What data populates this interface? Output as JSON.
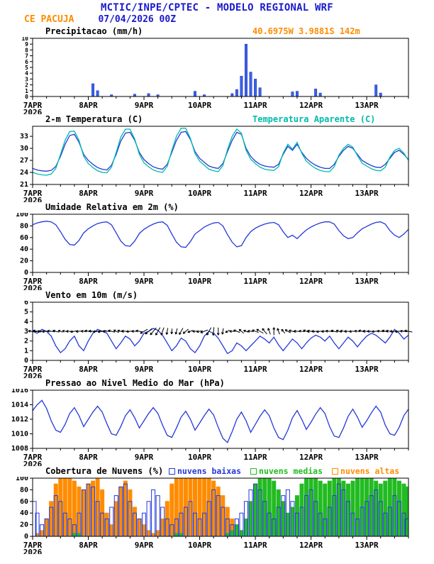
{
  "header": {
    "title": "MCTIC/INPE/CPTEC - MODELO REGIONAL WRF",
    "station": "CE PACUJA",
    "run": "07/04/2026 00Z",
    "location": "40.6975W 3.9881S 142m"
  },
  "colors": {
    "header_blue": "#1a1acc",
    "orange": "#ff8c00",
    "cyan": "#00bbaa",
    "line_blue": "#2438d8",
    "green": "#22bb22",
    "black": "#000000"
  },
  "x_axis": {
    "hours_total": 162,
    "step_hours": 2,
    "tick_hours": [
      0,
      24,
      48,
      72,
      96,
      120,
      144
    ],
    "tick_labels": [
      "7APR",
      "8APR",
      "9APR",
      "10APR",
      "11APR",
      "12APR",
      "13APR"
    ],
    "year": "2026",
    "minor_tick_hours": 6
  },
  "chart_data": [
    {
      "id": "precipitation",
      "type": "bar",
      "title": "Precipitacao (mm/h)",
      "ylim": [
        0,
        10
      ],
      "yticks": [
        0,
        1,
        2,
        3,
        4,
        5,
        6,
        7,
        8,
        9,
        10
      ],
      "color": "#3a62e8",
      "stroke": "#1c2bb0",
      "values": [
        0,
        0,
        0,
        0,
        0,
        0,
        0,
        0,
        0,
        0,
        0,
        0,
        0,
        2.2,
        1.0,
        0,
        0,
        0.3,
        0,
        0,
        0,
        0,
        0.4,
        0,
        0,
        0.5,
        0,
        0.3,
        0,
        0,
        0,
        0,
        0,
        0,
        0,
        0.9,
        0,
        0.3,
        0,
        0,
        0,
        0,
        0,
        0.5,
        1.2,
        3.5,
        9.0,
        4.2,
        3.0,
        1.5,
        0,
        0,
        0,
        0,
        0,
        0,
        0.8,
        0.9,
        0,
        0,
        0,
        1.3,
        0.6,
        0,
        0,
        0,
        0,
        0,
        0,
        0,
        0,
        0,
        0,
        0,
        2.0,
        0.6,
        0,
        0,
        0,
        0,
        0,
        0
      ]
    },
    {
      "id": "temperature",
      "type": "line",
      "title": "2-m Temperatura (C)",
      "title2": "Temperatura Aparente (C)",
      "ylim": [
        21,
        35.5
      ],
      "yticks": [
        21,
        24,
        27,
        30,
        33
      ],
      "series": [
        {
          "name": "2-m Temperatura (C)",
          "color": "#2438d8",
          "values": [
            25.0,
            24.6,
            24.4,
            24.3,
            24.5,
            25.5,
            28.0,
            31.0,
            33.2,
            33.5,
            31.5,
            28.5,
            27.0,
            26.0,
            25.2,
            24.8,
            24.6,
            25.8,
            28.5,
            31.8,
            33.8,
            34.0,
            32.0,
            29.0,
            27.2,
            26.2,
            25.4,
            25.0,
            24.8,
            26.0,
            29.0,
            32.0,
            34.0,
            34.2,
            32.2,
            29.2,
            27.5,
            26.5,
            25.6,
            25.2,
            25.0,
            26.2,
            29.2,
            32.0,
            34.0,
            33.5,
            30.0,
            28.0,
            26.8,
            26.0,
            25.6,
            25.4,
            25.3,
            26.0,
            28.5,
            30.5,
            29.5,
            31.0,
            29.0,
            27.5,
            26.5,
            25.8,
            25.3,
            25.0,
            25.0,
            26.0,
            28.0,
            29.5,
            30.5,
            30.0,
            28.5,
            27.0,
            26.3,
            25.7,
            25.3,
            25.2,
            26.0,
            27.5,
            29.0,
            29.5,
            28.5,
            27.2
          ]
        },
        {
          "name": "Temperatura Aparente (C)",
          "color": "#00bbaa",
          "values": [
            24.0,
            23.6,
            23.4,
            23.3,
            23.6,
            25.0,
            28.5,
            32.0,
            34.2,
            34.3,
            32.0,
            28.0,
            26.2,
            25.2,
            24.4,
            24.0,
            23.9,
            25.3,
            29.0,
            32.8,
            34.8,
            34.8,
            32.3,
            28.5,
            26.4,
            25.4,
            24.6,
            24.2,
            24.0,
            25.5,
            29.5,
            33.0,
            35.0,
            35.0,
            32.5,
            28.7,
            26.8,
            25.8,
            24.8,
            24.4,
            24.2,
            25.7,
            29.7,
            33.0,
            34.8,
            33.8,
            29.5,
            27.3,
            26.2,
            25.3,
            24.8,
            24.6,
            24.5,
            25.4,
            28.8,
            31.0,
            29.8,
            31.5,
            28.8,
            26.8,
            25.8,
            25.0,
            24.5,
            24.2,
            24.2,
            25.4,
            28.3,
            30.0,
            31.0,
            30.3,
            28.2,
            26.3,
            25.6,
            24.9,
            24.5,
            24.4,
            25.3,
            27.8,
            29.5,
            30.0,
            28.8,
            27.0
          ]
        }
      ]
    },
    {
      "id": "relative-humidity",
      "type": "line",
      "title": "Umidade Relativa em 2m (%)",
      "ylim": [
        0,
        100
      ],
      "yticks": [
        0,
        20,
        40,
        60,
        80,
        100
      ],
      "series": [
        {
          "name": "Umidade Relativa",
          "color": "#2438d8",
          "values": [
            82,
            85,
            87,
            88,
            87,
            82,
            70,
            57,
            48,
            47,
            55,
            68,
            75,
            80,
            84,
            86,
            87,
            82,
            68,
            54,
            46,
            45,
            54,
            67,
            74,
            79,
            83,
            86,
            87,
            81,
            66,
            52,
            44,
            43,
            53,
            66,
            72,
            78,
            82,
            85,
            86,
            80,
            65,
            52,
            44,
            46,
            60,
            70,
            76,
            80,
            83,
            85,
            86,
            82,
            70,
            60,
            64,
            58,
            66,
            73,
            78,
            82,
            85,
            87,
            87,
            83,
            72,
            63,
            58,
            60,
            68,
            75,
            79,
            83,
            86,
            87,
            83,
            72,
            64,
            60,
            66,
            74
          ]
        }
      ]
    },
    {
      "id": "wind",
      "type": "wind",
      "title": "Vento em 10m (m/s)",
      "ylim": [
        0,
        6
      ],
      "yticks": [
        0,
        1,
        2,
        3,
        4,
        5,
        6
      ],
      "color": "#2438d8",
      "arrow_color": "#000000",
      "arrow_y": 3,
      "speed": [
        3.0,
        2.8,
        3.2,
        3.0,
        2.5,
        1.5,
        0.8,
        1.2,
        2.0,
        2.5,
        1.5,
        1.0,
        2.0,
        2.8,
        3.2,
        3.0,
        2.8,
        2.0,
        1.2,
        1.8,
        2.5,
        2.2,
        1.5,
        2.0,
        2.8,
        3.0,
        3.3,
        3.1,
        2.6,
        1.8,
        1.0,
        1.5,
        2.3,
        2.0,
        1.2,
        0.8,
        1.5,
        2.5,
        3.0,
        2.8,
        2.3,
        1.5,
        0.7,
        1.0,
        1.8,
        1.5,
        1.0,
        1.5,
        2.0,
        2.5,
        2.2,
        1.8,
        2.4,
        1.6,
        1.0,
        1.6,
        2.2,
        1.8,
        1.2,
        1.8,
        2.3,
        2.6,
        2.4,
        2.0,
        2.5,
        1.8,
        1.2,
        1.8,
        2.4,
        2.0,
        1.4,
        2.0,
        2.5,
        2.8,
        2.6,
        2.2,
        1.8,
        2.4,
        3.2,
        2.8,
        2.2,
        2.6
      ],
      "dir": [
        185,
        190,
        180,
        175,
        185,
        195,
        200,
        190,
        180,
        170,
        175,
        185,
        190,
        185,
        175,
        170,
        180,
        195,
        205,
        195,
        185,
        175,
        180,
        190,
        150,
        140,
        130,
        120,
        110,
        100,
        95,
        105,
        120,
        140,
        160,
        175,
        170,
        160,
        120,
        95,
        90,
        100,
        150,
        180,
        200,
        220,
        200,
        185,
        200,
        210,
        230,
        250,
        270,
        250,
        230,
        210,
        195,
        185,
        190,
        200,
        190,
        180,
        170,
        175,
        185,
        195,
        200,
        190,
        180,
        175,
        185,
        195,
        185,
        180,
        175,
        185,
        195,
        190,
        180,
        175,
        185,
        190
      ]
    },
    {
      "id": "mslp",
      "type": "line",
      "title": "Pressao ao Nivel Medio do Mar (hPa)",
      "ylim": [
        1008,
        1016
      ],
      "yticks": [
        1008,
        1010,
        1012,
        1014,
        1016
      ],
      "series": [
        {
          "name": "PNMM",
          "color": "#2438d8",
          "values": [
            1013.2,
            1014.0,
            1014.6,
            1013.5,
            1011.8,
            1010.5,
            1010.2,
            1011.3,
            1012.8,
            1013.6,
            1012.5,
            1011.0,
            1012.0,
            1013.0,
            1013.8,
            1013.0,
            1011.4,
            1010.0,
            1009.8,
            1011.0,
            1012.5,
            1013.3,
            1012.2,
            1010.8,
            1011.8,
            1012.8,
            1013.6,
            1012.8,
            1011.2,
            1009.8,
            1009.5,
            1010.8,
            1012.3,
            1013.1,
            1012.0,
            1010.5,
            1011.5,
            1012.5,
            1013.4,
            1012.6,
            1010.9,
            1009.4,
            1008.8,
            1010.3,
            1012.0,
            1013.0,
            1011.8,
            1010.2,
            1011.3,
            1012.4,
            1013.3,
            1012.5,
            1010.8,
            1009.5,
            1009.2,
            1010.5,
            1012.2,
            1013.2,
            1012.0,
            1010.6,
            1011.6,
            1012.7,
            1013.6,
            1012.8,
            1011.0,
            1009.7,
            1009.5,
            1010.8,
            1012.4,
            1013.4,
            1012.3,
            1010.9,
            1011.8,
            1012.9,
            1013.8,
            1013.0,
            1011.2,
            1010.0,
            1009.8,
            1010.9,
            1012.5,
            1013.4
          ]
        }
      ]
    },
    {
      "id": "cloud-cover",
      "type": "cloudbars",
      "title": "Cobertura de Nuvens (%)",
      "ylim": [
        0,
        100
      ],
      "yticks": [
        0,
        20,
        40,
        60,
        80,
        100
      ],
      "legend": [
        {
          "label": "nuvens baixas",
          "color": "#2438d8"
        },
        {
          "label": "nuvens medias",
          "color": "#22bb22"
        },
        {
          "label": "nuvens altas",
          "color": "#ff8c00"
        }
      ],
      "series": [
        {
          "name": "nuvens altas",
          "color": "#ff8c00",
          "fill": true,
          "values": [
            0,
            5,
            10,
            30,
            60,
            90,
            100,
            100,
            100,
            95,
            85,
            80,
            90,
            95,
            100,
            80,
            40,
            20,
            60,
            85,
            95,
            80,
            50,
            30,
            20,
            10,
            5,
            10,
            30,
            60,
            90,
            100,
            100,
            100,
            100,
            100,
            100,
            100,
            100,
            95,
            85,
            70,
            50,
            30,
            20,
            10,
            5,
            5,
            5,
            5,
            0,
            0,
            5,
            10,
            15,
            10,
            5,
            5,
            10,
            15,
            10,
            5,
            5,
            0,
            0,
            5,
            5,
            10,
            10,
            5,
            5,
            5,
            5,
            5,
            0,
            0,
            5,
            10,
            10,
            5,
            5,
            0
          ]
        },
        {
          "name": "nuvens medias",
          "color": "#22bb22",
          "fill": true,
          "values": [
            0,
            0,
            0,
            0,
            0,
            0,
            0,
            0,
            0,
            5,
            5,
            0,
            0,
            0,
            0,
            0,
            0,
            0,
            0,
            0,
            0,
            0,
            0,
            0,
            0,
            0,
            0,
            0,
            0,
            0,
            0,
            5,
            5,
            0,
            0,
            0,
            0,
            0,
            0,
            0,
            0,
            0,
            5,
            10,
            20,
            10,
            30,
            60,
            90,
            100,
            100,
            100,
            95,
            80,
            60,
            40,
            50,
            70,
            90,
            100,
            100,
            100,
            95,
            90,
            95,
            100,
            100,
            95,
            90,
            95,
            100,
            100,
            100,
            100,
            95,
            90,
            95,
            100,
            100,
            95,
            90,
            85
          ]
        },
        {
          "name": "nuvens baixas",
          "color": "#2438d8",
          "fill": false,
          "values": [
            60,
            40,
            20,
            30,
            50,
            70,
            60,
            40,
            30,
            20,
            40,
            80,
            90,
            85,
            60,
            40,
            30,
            50,
            70,
            85,
            90,
            60,
            40,
            30,
            40,
            60,
            80,
            70,
            50,
            30,
            20,
            30,
            40,
            50,
            60,
            40,
            30,
            40,
            60,
            80,
            70,
            50,
            30,
            20,
            30,
            40,
            60,
            80,
            90,
            80,
            60,
            40,
            30,
            50,
            70,
            80,
            60,
            40,
            50,
            70,
            80,
            60,
            40,
            30,
            50,
            70,
            90,
            80,
            60,
            40,
            30,
            50,
            60,
            70,
            80,
            60,
            40,
            50,
            70,
            60,
            40,
            30
          ]
        }
      ]
    }
  ]
}
